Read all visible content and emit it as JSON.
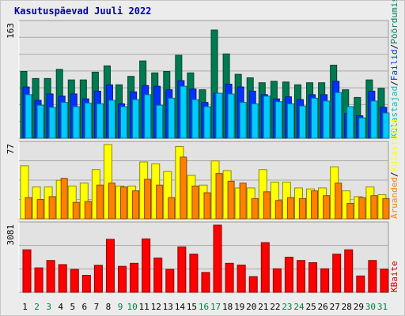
{
  "title": "Kasutuspäevad Juuli 2022",
  "legend": {
    "top": [
      {
        "label": "Külastajad",
        "color": "#00c0c0"
      },
      {
        "label": "Failid",
        "color": "#0040c0"
      },
      {
        "label": "Pöördumisi",
        "color": "#008060"
      }
    ],
    "middle": [
      {
        "label": "Aruanded",
        "color": "#ff8000"
      },
      {
        "label": "Külastused",
        "color": "#ffff00"
      }
    ],
    "bottom": [
      {
        "label": "KBaite",
        "color": "#cc0000"
      }
    ],
    "separator": "/"
  },
  "colors": {
    "pordumisi": "#007a50",
    "failid": "#0033ff",
    "kylastajad": "#00ccff",
    "kylastused": "#ffff00",
    "aruanded": "#ff8000",
    "kbaite": "#ff0000",
    "weekend_label": "#007f40",
    "weekday_label": "#000000"
  },
  "chart_data": [
    {
      "type": "bar",
      "panel": "hits-files-visitors",
      "x": [
        1,
        2,
        3,
        4,
        5,
        6,
        7,
        8,
        9,
        10,
        11,
        12,
        13,
        14,
        15,
        16,
        17,
        18,
        19,
        20,
        21,
        22,
        23,
        24,
        25,
        26,
        27,
        28,
        29,
        30,
        31
      ],
      "weekend_days": [
        2,
        3,
        9,
        10,
        16,
        17,
        23,
        24,
        30,
        31
      ],
      "ymax_label": "163",
      "ylim": [
        0,
        163
      ],
      "series": [
        {
          "name": "Pöördumisi",
          "values": [
            95,
            85,
            85,
            98,
            83,
            83,
            94,
            103,
            76,
            88,
            110,
            93,
            95,
            118,
            93,
            69,
            154,
            120,
            91,
            86,
            79,
            81,
            80,
            76,
            79,
            79,
            104,
            69,
            58,
            83,
            71
          ]
        },
        {
          "name": "Failid",
          "values": [
            73,
            54,
            63,
            60,
            63,
            56,
            67,
            76,
            49,
            66,
            75,
            74,
            69,
            82,
            70,
            51,
            64,
            77,
            73,
            67,
            62,
            56,
            59,
            55,
            62,
            62,
            81,
            35,
            32,
            67,
            44
          ]
        },
        {
          "name": "Külastajad",
          "values": [
            62,
            47,
            44,
            51,
            45,
            50,
            49,
            54,
            45,
            55,
            62,
            47,
            57,
            74,
            55,
            45,
            64,
            63,
            51,
            49,
            60,
            52,
            49,
            46,
            57,
            53,
            65,
            45,
            29,
            53,
            36
          ]
        }
      ]
    },
    {
      "type": "bar",
      "panel": "visits-pages",
      "x": [
        1,
        2,
        3,
        4,
        5,
        6,
        7,
        8,
        9,
        10,
        11,
        12,
        13,
        14,
        15,
        16,
        17,
        18,
        19,
        20,
        21,
        22,
        23,
        24,
        25,
        26,
        27,
        28,
        29,
        30,
        31
      ],
      "ymax_label": "77",
      "ylim": [
        0,
        77
      ],
      "series": [
        {
          "name": "Külastused",
          "values": [
            55,
            33,
            33,
            40,
            34,
            37,
            51,
            77,
            34,
            34,
            59,
            57,
            49,
            75,
            45,
            35,
            60,
            50,
            32,
            32,
            51,
            38,
            38,
            32,
            31,
            32,
            54,
            29,
            23,
            33,
            25
          ]
        },
        {
          "name": "Aruanded",
          "values": [
            22,
            20,
            23,
            42,
            17,
            18,
            35,
            37,
            33,
            29,
            41,
            35,
            22,
            64,
            34,
            27,
            47,
            39,
            37,
            21,
            28,
            19,
            22,
            21,
            29,
            24,
            37,
            16,
            22,
            24,
            21
          ]
        }
      ]
    },
    {
      "type": "bar",
      "panel": "kbytes",
      "x": [
        1,
        2,
        3,
        4,
        5,
        6,
        7,
        8,
        9,
        10,
        11,
        12,
        13,
        14,
        15,
        16,
        17,
        18,
        19,
        20,
        21,
        22,
        23,
        24,
        25,
        26,
        27,
        28,
        29,
        30,
        31
      ],
      "ymax_label": "3081",
      "ylim": [
        0,
        3081
      ],
      "series": [
        {
          "name": "KBaite",
          "values": [
            1950,
            1120,
            1460,
            1270,
            1050,
            780,
            1240,
            2430,
            1190,
            1330,
            2450,
            1570,
            1050,
            2080,
            1750,
            910,
            3081,
            1330,
            1250,
            720,
            2280,
            1080,
            1610,
            1460,
            1360,
            1080,
            1750,
            1950,
            750,
            1460,
            1060
          ]
        }
      ]
    }
  ]
}
